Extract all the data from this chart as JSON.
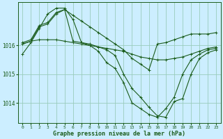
{
  "background_color": "#cceeff",
  "grid_color": "#99ccbb",
  "line_color": "#1a5c1a",
  "marker_color": "#1a5c1a",
  "xlabel": "Graphe pression niveau de la mer (hPa)",
  "ylim": [
    1013.3,
    1017.5
  ],
  "xlim": [
    -0.5,
    23.5
  ],
  "yticks": [
    1014,
    1015,
    1016
  ],
  "xticks": [
    0,
    1,
    2,
    3,
    4,
    5,
    6,
    7,
    8,
    9,
    10,
    11,
    12,
    13,
    14,
    15,
    16,
    17,
    18,
    19,
    20,
    21,
    22,
    23
  ],
  "series": [
    [
      1015.7,
      1016.1,
      1016.6,
      1017.1,
      1017.3,
      1017.3,
      1016.9,
      1016.1,
      1016.0,
      1015.8,
      1015.4,
      1015.2,
      1014.7,
      1014.0,
      1013.8,
      1013.6,
      1013.5,
      1013.8,
      1014.2,
      1015.0,
      1015.5,
      1015.7,
      1015.85,
      1015.9
    ],
    [
      1016.05,
      1016.15,
      1016.2,
      1016.2,
      1016.2,
      1016.15,
      1016.1,
      1016.05,
      1016.0,
      1015.95,
      1015.9,
      1015.85,
      1015.8,
      1015.7,
      1015.6,
      1015.55,
      1015.5,
      1015.5,
      1015.55,
      1015.6,
      1015.7,
      1015.8,
      1015.9,
      1015.95
    ],
    [
      1016.05,
      1016.15,
      1016.65,
      1016.75,
      1017.1,
      1017.25,
      1016.15,
      1016.1,
      1016.05,
      1015.95,
      1015.85,
      1015.65,
      1015.0,
      1014.5,
      1014.2,
      1013.85,
      1013.55,
      1013.5,
      1014.05,
      1014.15,
      1015.0,
      1015.55,
      1015.75,
      1015.85
    ],
    [
      1016.1,
      1016.2,
      1016.7,
      1016.8,
      1017.15,
      1017.25,
      1017.05,
      1016.85,
      1016.65,
      1016.45,
      1016.25,
      1016.05,
      1015.85,
      1015.55,
      1015.35,
      1015.15,
      1016.05,
      1016.1,
      1016.2,
      1016.3,
      1016.4,
      1016.4,
      1016.4,
      1016.45
    ]
  ]
}
